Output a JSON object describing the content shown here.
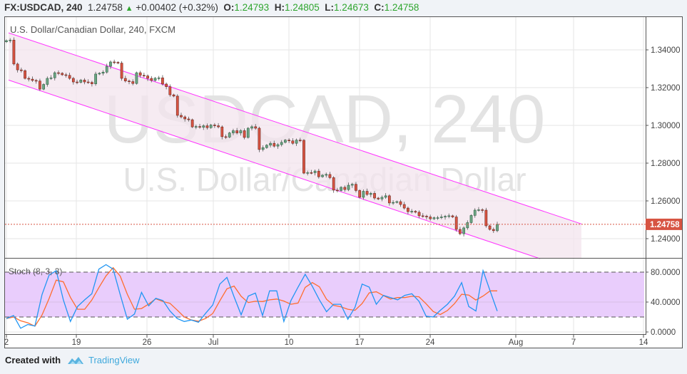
{
  "header": {
    "symbol": "FX:USDCAD, 240",
    "last": "1.24758",
    "change": "+0.00402 (+0.32%)",
    "open_label": "O:",
    "open": "1.24793",
    "high_label": "H:",
    "high": "1.24805",
    "low_label": "L:",
    "low": "1.24673",
    "close_label": "C:",
    "close": "1.24758"
  },
  "legend": {
    "title": "U.S. Dollar/Canadian Dollar, 240, FXCM",
    "stoch": "Stoch (8, 3, 3)"
  },
  "watermark": {
    "line1": "USDCAD, 240",
    "line2": "U.S. Dollar/Canadian Dollar"
  },
  "footer": {
    "created_with": "Created with",
    "brand": "TradingView"
  },
  "colors": {
    "up": "#6ba583",
    "down": "#d75442",
    "channel": "#ff33ff",
    "channel_fill": "#f3e4ee",
    "last_price": "#d75442",
    "stoch_k": "#2196f3",
    "stoch_d": "#ff6d2e",
    "stoch_band": "#e9cdfc",
    "header_values": "#2ea52e"
  },
  "chart_data": [
    {
      "type": "candlestick",
      "title": "U.S. Dollar/Canadian Dollar, 240, FXCM",
      "ylim": [
        1.2275,
        1.3505
      ],
      "y_ticks": [
        "1.34000",
        "1.32000",
        "1.30000",
        "1.28000",
        "1.26000",
        "1.24000"
      ],
      "y_tick_values": [
        1.34,
        1.32,
        1.3,
        1.28,
        1.26,
        1.24
      ],
      "x_ticks": [
        "2",
        "19",
        "26",
        "Jul",
        "10",
        "17",
        "24",
        "Aug",
        "7",
        "14"
      ],
      "last_price": 1.24758,
      "last_price_label": "1.24758",
      "grid": true,
      "closes": [
        1.3449,
        1.3452,
        1.3325,
        1.3294,
        1.329,
        1.3249,
        1.3245,
        1.3238,
        1.3235,
        1.3192,
        1.3217,
        1.3249,
        1.3252,
        1.3279,
        1.3276,
        1.3268,
        1.3265,
        1.3249,
        1.323,
        1.3228,
        1.324,
        1.323,
        1.3228,
        1.322,
        1.3272,
        1.3276,
        1.3282,
        1.3313,
        1.3336,
        1.3334,
        1.333,
        1.3249,
        1.3235,
        1.3232,
        1.3222,
        1.3279,
        1.3265,
        1.3262,
        1.3249,
        1.3238,
        1.325,
        1.3252,
        1.3219,
        1.3205,
        1.3162,
        1.3155,
        1.3053,
        1.3045,
        1.3034,
        1.303,
        1.2992,
        1.2994,
        1.299,
        1.2998,
        1.2988,
        1.3002,
        1.2998,
        1.2992,
        1.294,
        1.2938,
        1.296,
        1.2972,
        1.296,
        1.2972,
        1.2936,
        1.2985,
        1.2993,
        1.2985,
        1.2872,
        1.2882,
        1.2895,
        1.2905,
        1.289,
        1.2898,
        1.291,
        1.2922,
        1.2918,
        1.2905,
        1.2922,
        1.2921,
        1.2747,
        1.275,
        1.2749,
        1.2758,
        1.2728,
        1.2736,
        1.274,
        1.2723,
        1.2657,
        1.2655,
        1.2672,
        1.266,
        1.2683,
        1.2688,
        1.2655,
        1.2619,
        1.2651,
        1.2634,
        1.264,
        1.2615,
        1.261,
        1.2619,
        1.2627,
        1.2589,
        1.2592,
        1.2596,
        1.2581,
        1.2562,
        1.2543,
        1.2545,
        1.254,
        1.2521,
        1.2519,
        1.2515,
        1.2505,
        1.2511,
        1.2511,
        1.2515,
        1.2518,
        1.2521,
        1.2515,
        1.2449,
        1.2426,
        1.2457,
        1.2485,
        1.2523,
        1.2551,
        1.2553,
        1.2551,
        1.2468,
        1.2449,
        1.2442,
        1.24758
      ],
      "channel": {
        "upper": [
          {
            "x": "Jun 12",
            "y": 1.349
          },
          {
            "x": "Aug 8",
            "y": 1.2478
          }
        ],
        "lower": [
          {
            "x": "Jun 12",
            "y": 1.324
          },
          {
            "x": "Aug 5",
            "y": 1.2294
          }
        ]
      }
    },
    {
      "type": "line",
      "title": "Stoch (8, 3, 3)",
      "ylim": [
        0,
        100
      ],
      "y_ticks": [
        "80.0000",
        "40.0000",
        "0.0000"
      ],
      "y_tick_values": [
        80,
        40,
        0
      ],
      "band": [
        20,
        80
      ],
      "series": [
        {
          "name": "%K",
          "values": [
            18,
            22,
            5,
            10,
            8,
            50,
            76,
            82,
            43,
            14,
            34,
            43,
            51,
            84,
            90,
            84,
            50,
            17,
            24,
            53,
            35,
            45,
            42,
            28,
            18,
            14,
            16,
            13,
            25,
            36,
            64,
            73,
            47,
            23,
            48,
            52,
            22,
            55,
            55,
            14,
            42,
            60,
            77,
            61,
            43,
            27,
            37,
            37,
            17,
            33,
            64,
            60,
            37,
            49,
            46,
            43,
            49,
            51,
            41,
            21,
            20,
            29,
            37,
            48,
            66,
            34,
            28,
            82,
            55,
            28
          ]
        }
      ]
    }
  ]
}
